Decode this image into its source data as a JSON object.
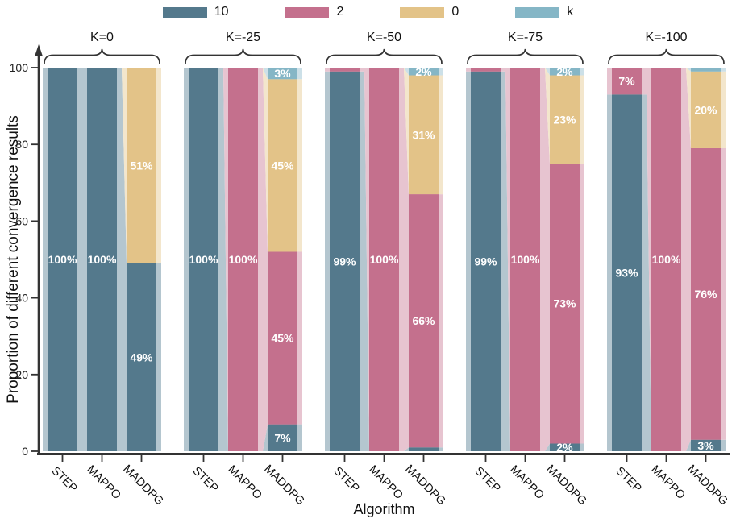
{
  "figure": {
    "y_axis": {
      "title": "Proportion of different convergence results",
      "tick_values": [
        0,
        20,
        40,
        60,
        80,
        100
      ],
      "tick_labels": [
        "0",
        "20",
        "40",
        "60",
        "80",
        "100"
      ]
    },
    "x_axis": {
      "title": "Algorithm"
    },
    "legend": {
      "items": [
        {
          "label": "10",
          "key": "s10"
        },
        {
          "label": "2",
          "key": "s2"
        },
        {
          "label": "0",
          "key": "s0"
        },
        {
          "label": "k",
          "key": "sk"
        }
      ]
    },
    "colors": {
      "s10": "#54798C",
      "s2": "#C4708D",
      "s0": "#E3C388",
      "sk": "#85B6C6",
      "s10_light": "#B4C6CF",
      "s2_light": "#E7C4D0",
      "s0_light": "#F3E6CC",
      "sk_light": "#CCE0E8",
      "axis": "#333333",
      "segment_text": "#FFFFFF"
    },
    "chart_data": {
      "type": "bar",
      "stacked": true,
      "unit": "%",
      "ylim": [
        0,
        100
      ],
      "grid": false,
      "legend_position": "top-center",
      "series_names": [
        "10",
        "2",
        "0",
        "k"
      ],
      "bar_labels": [
        "STEP",
        "MAPPO",
        "MADDPG"
      ],
      "groups": [
        {
          "title": "K=0",
          "bars": [
            {
              "label": "STEP",
              "values": [
                100,
                0,
                0,
                0
              ],
              "labels": [
                "100%",
                null,
                null,
                null
              ]
            },
            {
              "label": "MAPPO",
              "values": [
                100,
                0,
                0,
                0
              ],
              "labels": [
                "100%",
                null,
                null,
                null
              ]
            },
            {
              "label": "MADDPG",
              "values": [
                49,
                0,
                51,
                0
              ],
              "labels": [
                "49%",
                null,
                "51%",
                null
              ]
            }
          ]
        },
        {
          "title": "K=-25",
          "bars": [
            {
              "label": "STEP",
              "values": [
                100,
                0,
                0,
                0
              ],
              "labels": [
                "100%",
                null,
                null,
                null
              ]
            },
            {
              "label": "MAPPO",
              "values": [
                0,
                100,
                0,
                0
              ],
              "labels": [
                null,
                "100%",
                null,
                null
              ]
            },
            {
              "label": "MADDPG",
              "values": [
                7,
                45,
                45,
                3
              ],
              "labels": [
                "7%",
                "45%",
                "45%",
                "3%"
              ]
            }
          ]
        },
        {
          "title": "K=-50",
          "bars": [
            {
              "label": "STEP",
              "values": [
                99,
                1,
                0,
                0
              ],
              "labels": [
                "99%",
                null,
                null,
                null
              ]
            },
            {
              "label": "MAPPO",
              "values": [
                0,
                100,
                0,
                0
              ],
              "labels": [
                null,
                "100%",
                null,
                null
              ]
            },
            {
              "label": "MADDPG",
              "values": [
                1,
                66,
                31,
                2
              ],
              "labels": [
                null,
                "66%",
                "31%",
                "2%"
              ]
            }
          ]
        },
        {
          "title": "K=-75",
          "bars": [
            {
              "label": "STEP",
              "values": [
                99,
                1,
                0,
                0
              ],
              "labels": [
                "99%",
                null,
                null,
                null
              ]
            },
            {
              "label": "MAPPO",
              "values": [
                0,
                100,
                0,
                0
              ],
              "labels": [
                null,
                "100%",
                null,
                null
              ]
            },
            {
              "label": "MADDPG",
              "values": [
                2,
                73,
                23,
                2
              ],
              "labels": [
                "2%",
                "73%",
                "23%",
                "2%"
              ]
            }
          ]
        },
        {
          "title": "K=-100",
          "bars": [
            {
              "label": "STEP",
              "values": [
                93,
                7,
                0,
                0
              ],
              "labels": [
                "93%",
                "7%",
                null,
                null
              ]
            },
            {
              "label": "MAPPO",
              "values": [
                0,
                100,
                0,
                0
              ],
              "labels": [
                null,
                "100%",
                null,
                null
              ]
            },
            {
              "label": "MADDPG",
              "values": [
                3,
                76,
                20,
                1
              ],
              "labels": [
                "3%",
                "76%",
                "20%",
                null
              ]
            }
          ]
        }
      ]
    }
  }
}
